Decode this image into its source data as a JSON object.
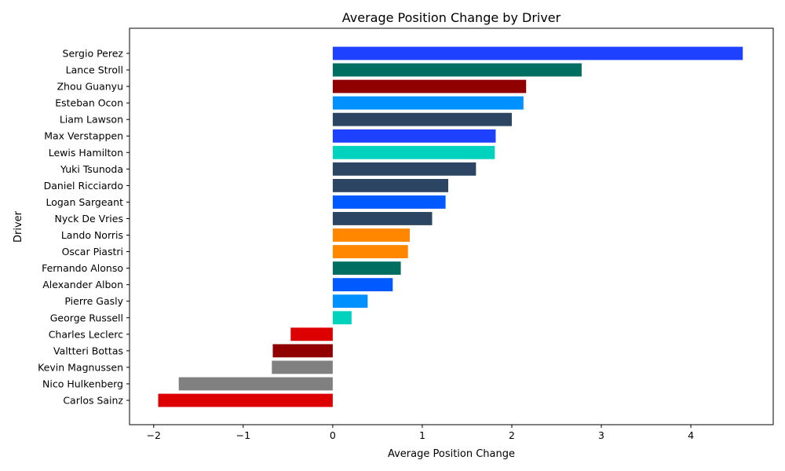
{
  "chart_data": {
    "type": "bar",
    "orientation": "horizontal",
    "title": "Average Position Change by Driver",
    "xlabel": "Average Position Change",
    "ylabel": "Driver",
    "xlim": [
      -2.27,
      4.92
    ],
    "xticks": [
      -2,
      -1,
      0,
      1,
      2,
      3,
      4
    ],
    "xtick_labels": [
      "−2",
      "−1",
      "0",
      "1",
      "2",
      "3",
      "4"
    ],
    "grid": false,
    "categories": [
      "Sergio Perez",
      "Lance Stroll",
      "Zhou Guanyu",
      "Esteban Ocon",
      "Liam Lawson",
      "Max Verstappen",
      "Lewis Hamilton",
      "Yuki Tsunoda",
      "Daniel Ricciardo",
      "Logan Sargeant",
      "Nyck De Vries",
      "Lando Norris",
      "Oscar Piastri",
      "Fernando Alonso",
      "Alexander Albon",
      "Pierre Gasly",
      "George Russell",
      "Charles Leclerc",
      "Valtteri Bottas",
      "Kevin Magnussen",
      "Nico Hulkenberg",
      "Carlos Sainz"
    ],
    "values": [
      4.58,
      2.78,
      2.16,
      2.13,
      2.0,
      1.82,
      1.81,
      1.6,
      1.29,
      1.26,
      1.11,
      0.86,
      0.84,
      0.76,
      0.67,
      0.39,
      0.21,
      -0.47,
      -0.67,
      -0.68,
      -1.72,
      -1.95
    ],
    "colors": [
      "#1e41ff",
      "#006f62",
      "#900000",
      "#0090ff",
      "#2b4562",
      "#1e41ff",
      "#00d2be",
      "#2b4562",
      "#2b4562",
      "#005aff",
      "#2b4562",
      "#ff8700",
      "#ff8700",
      "#006f62",
      "#005aff",
      "#0090ff",
      "#00d2be",
      "#dc0000",
      "#900000",
      "#808080",
      "#808080",
      "#dc0000"
    ]
  }
}
